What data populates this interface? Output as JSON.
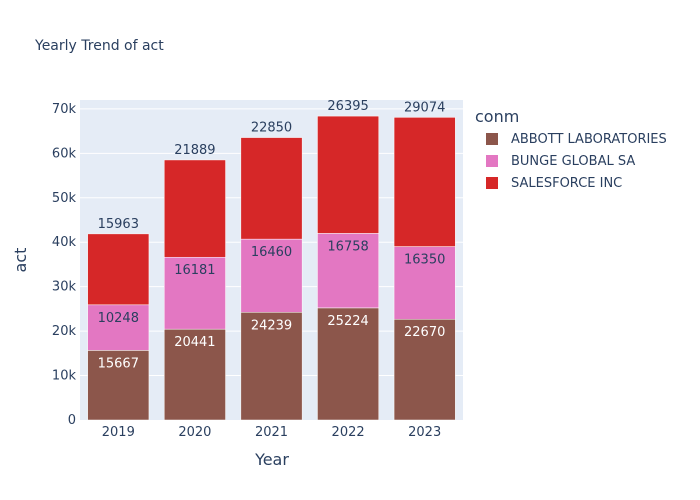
{
  "chart_data": {
    "type": "bar",
    "stacked": true,
    "title": "Yearly Trend of act",
    "xlabel": "Year",
    "ylabel": "act",
    "categories": [
      "2019",
      "2020",
      "2021",
      "2022",
      "2023"
    ],
    "ylim": [
      0,
      72000
    ],
    "yticks": [
      0,
      10000,
      20000,
      30000,
      40000,
      50000,
      60000,
      70000
    ],
    "ytick_labels": [
      "0",
      "10k",
      "20k",
      "30k",
      "40k",
      "50k",
      "60k",
      "70k"
    ],
    "legend_title": "conm",
    "legend_position": "right",
    "grid": true,
    "background_color": "#e5ecf6",
    "series": [
      {
        "name": "ABBOTT LABORATORIES",
        "color": "#8c564b",
        "label_color": "#ffffff",
        "label_position": "inside-top",
        "values": [
          15667,
          20441,
          24239,
          25224,
          22670
        ]
      },
      {
        "name": "BUNGE GLOBAL SA",
        "color": "#e377c2",
        "label_color": "#2a3f5f",
        "label_position": "inside-top",
        "values": [
          10248,
          16181,
          16460,
          16758,
          16350
        ]
      },
      {
        "name": "SALESFORCE INC",
        "color": "#d62728",
        "label_color": "#2a3f5f",
        "label_position": "outside",
        "values": [
          15963,
          21889,
          22850,
          26395,
          29074
        ]
      }
    ]
  }
}
